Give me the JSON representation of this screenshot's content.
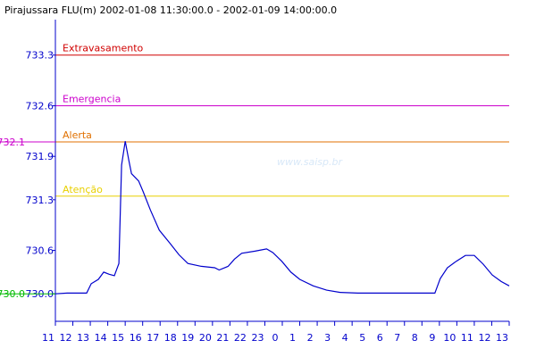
{
  "chart_data": {
    "type": "line",
    "title": "Pirajussara FLU(m) 2002-01-08 11:30:00.0 - 2002-01-09 14:00:00.0",
    "watermark": "www.saisp.br",
    "x": [
      11.0,
      11.67,
      12.79,
      13.05,
      13.46,
      13.77,
      14.08,
      14.38,
      14.64,
      14.79,
      15.0,
      15.21,
      15.36,
      15.77,
      16.03,
      16.44,
      16.95,
      17.56,
      18.08,
      18.59,
      19.36,
      20.13,
      20.38,
      20.9,
      21.26,
      21.67,
      22.44,
      23.1,
      23.46,
      23.97,
      24.49,
      25.0,
      25.77,
      26.54,
      27.31,
      28.33,
      29.87,
      31.41,
      32.74,
      33.05,
      33.46,
      33.97,
      34.49,
      35.0,
      35.51,
      36.03,
      36.54,
      37.0
    ],
    "series": [
      {
        "color": "#0000cc",
        "values": [
          730.0,
          730.01,
          730.01,
          730.14,
          730.2,
          730.3,
          730.27,
          730.25,
          730.42,
          731.78,
          732.11,
          731.84,
          731.66,
          731.56,
          731.41,
          731.16,
          730.88,
          730.7,
          730.54,
          730.42,
          730.38,
          730.36,
          730.33,
          730.38,
          730.48,
          730.56,
          730.59,
          730.62,
          730.57,
          730.45,
          730.3,
          730.2,
          730.11,
          730.05,
          730.02,
          730.01,
          730.01,
          730.01,
          730.01,
          730.21,
          730.36,
          730.45,
          730.53,
          730.53,
          730.41,
          730.26,
          730.17,
          730.11
        ]
      }
    ],
    "xlim": [
      11,
      37
    ],
    "xticks": [
      11,
      12,
      13,
      14,
      15,
      16,
      17,
      18,
      19,
      20,
      21,
      22,
      23,
      {
        "value": 24,
        "label": "0"
      },
      {
        "value": 25,
        "label": "1"
      },
      {
        "value": 26,
        "label": "2"
      },
      {
        "value": 27,
        "label": "3"
      },
      {
        "value": 28,
        "label": "4"
      },
      {
        "value": 29,
        "label": "5"
      },
      {
        "value": 30,
        "label": "6"
      },
      {
        "value": 31,
        "label": "7"
      },
      {
        "value": 32,
        "label": "8"
      },
      {
        "value": 33,
        "label": "9"
      },
      {
        "value": 34,
        "label": "10"
      },
      {
        "value": 35,
        "label": "11"
      },
      {
        "value": 36,
        "label": "12"
      },
      {
        "value": 37,
        "label": "13"
      }
    ],
    "ylim": [
      729.62,
      733.79
    ],
    "yticks": [
      {
        "value": 730,
        "label": "730.0"
      },
      730.6,
      731.3,
      731.9,
      732.6,
      733.3
    ],
    "thresholds": [
      {
        "label": "Extravasamento",
        "value": 733.3,
        "color": "#d00000"
      },
      {
        "label": "Emergencia",
        "value": 732.6,
        "color": "#cc00cc"
      },
      {
        "label": "Alerta",
        "value": 732.1,
        "color": "#e07000"
      },
      {
        "label": "Atenção",
        "value": 731.35,
        "color": "#e8d000"
      }
    ],
    "markers": [
      {
        "value": 732.1,
        "label": "732.1",
        "color": "#cc00cc"
      },
      {
        "value": 730,
        "label": "730.0",
        "color": "#00bb00"
      }
    ]
  }
}
